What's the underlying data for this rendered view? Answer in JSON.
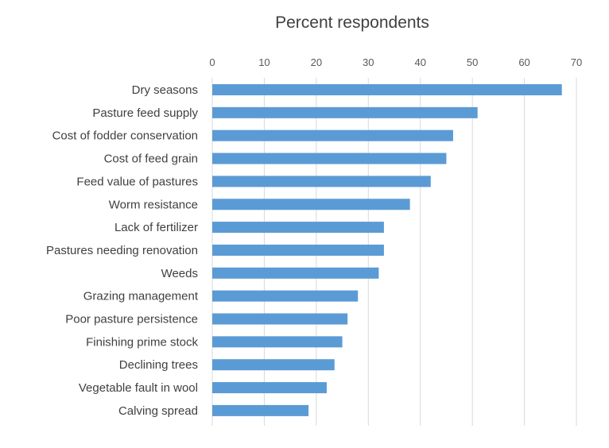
{
  "chart_data": {
    "type": "bar",
    "orientation": "horizontal",
    "title": "Percent respondents",
    "xlabel": "",
    "ylabel": "",
    "xlim": [
      0,
      70
    ],
    "x_ticks": [
      0,
      10,
      20,
      30,
      40,
      50,
      60,
      70
    ],
    "x_axis_position": "top",
    "grid": true,
    "legend": "none",
    "bar_color": "#5b9bd5",
    "categories": [
      "Dry seasons",
      "Pasture feed supply",
      "Cost of fodder conservation",
      "Cost of feed grain",
      "Feed value of pastures",
      "Worm resistance",
      "Lack of fertilizer",
      "Pastures needing renovation",
      "Weeds",
      "Grazing management",
      "Poor pasture persistence",
      "Finishing prime stock",
      "Declining trees",
      "Vegetable fault in wool",
      "Calving spread"
    ],
    "values": [
      67.2,
      51,
      46.3,
      45,
      42,
      38,
      33,
      33,
      32,
      28,
      26,
      25,
      23.5,
      22,
      18.5
    ]
  }
}
